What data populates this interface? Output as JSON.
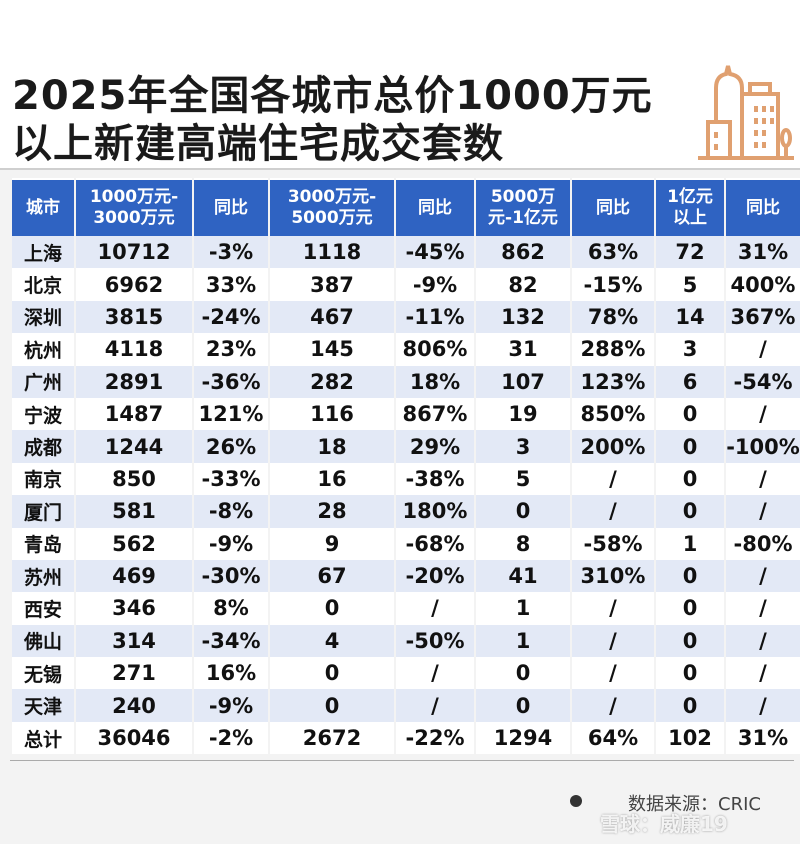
{
  "title_line1": "2025年全国各城市总价1000万元",
  "title_line2": "以上新建高端住宅成交套数",
  "source": "数据来源：CRIC",
  "watermark": "雪球：威廉19",
  "colors": {
    "header": "#2f63c2",
    "shade": "#e3e9f6",
    "logo": "#e0a070"
  },
  "chart_data": {
    "type": "table",
    "title": "2025年全国各城市总价1000万元以上新建高端住宅成交套数",
    "columns": [
      "城市",
      "1000万元-\n3000万元",
      "同比",
      "3000万元-\n5000万元",
      "同比",
      "5000万\n元-1亿元",
      "同比",
      "1亿元\n以上",
      "同比"
    ],
    "rows": [
      [
        "上海",
        "10712",
        "-3%",
        "1118",
        "-45%",
        "862",
        "63%",
        "72",
        "31%"
      ],
      [
        "北京",
        "6962",
        "33%",
        "387",
        "-9%",
        "82",
        "-15%",
        "5",
        "400%"
      ],
      [
        "深圳",
        "3815",
        "-24%",
        "467",
        "-11%",
        "132",
        "78%",
        "14",
        "367%"
      ],
      [
        "杭州",
        "4118",
        "23%",
        "145",
        "806%",
        "31",
        "288%",
        "3",
        "/"
      ],
      [
        "广州",
        "2891",
        "-36%",
        "282",
        "18%",
        "107",
        "123%",
        "6",
        "-54%"
      ],
      [
        "宁波",
        "1487",
        "121%",
        "116",
        "867%",
        "19",
        "850%",
        "0",
        "/"
      ],
      [
        "成都",
        "1244",
        "26%",
        "18",
        "29%",
        "3",
        "200%",
        "0",
        "-100%"
      ],
      [
        "南京",
        "850",
        "-33%",
        "16",
        "-38%",
        "5",
        "/",
        "0",
        "/"
      ],
      [
        "厦门",
        "581",
        "-8%",
        "28",
        "180%",
        "0",
        "/",
        "0",
        "/"
      ],
      [
        "青岛",
        "562",
        "-9%",
        "9",
        "-68%",
        "8",
        "-58%",
        "1",
        "-80%"
      ],
      [
        "苏州",
        "469",
        "-30%",
        "67",
        "-20%",
        "41",
        "310%",
        "0",
        "/"
      ],
      [
        "西安",
        "346",
        "8%",
        "0",
        "/",
        "1",
        "/",
        "0",
        "/"
      ],
      [
        "佛山",
        "314",
        "-34%",
        "4",
        "-50%",
        "1",
        "/",
        "0",
        "/"
      ],
      [
        "无锡",
        "271",
        "16%",
        "0",
        "/",
        "0",
        "/",
        "0",
        "/"
      ],
      [
        "天津",
        "240",
        "-9%",
        "0",
        "/",
        "0",
        "/",
        "0",
        "/"
      ],
      [
        "总计",
        "36046",
        "-2%",
        "2672",
        "-22%",
        "1294",
        "64%",
        "102",
        "31%"
      ]
    ]
  }
}
